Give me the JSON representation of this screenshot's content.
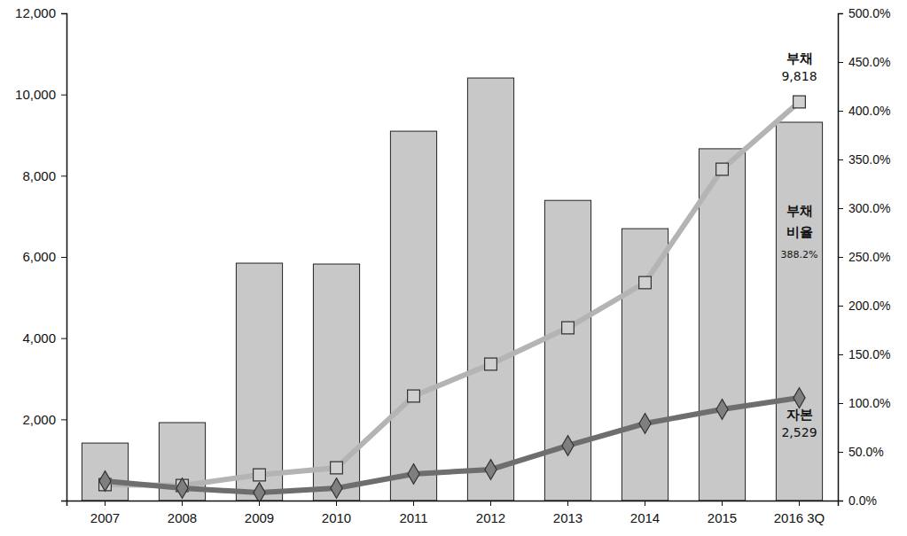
{
  "chart_data": {
    "type": "bar",
    "categories": [
      "2007",
      "2008",
      "2009",
      "2010",
      "2011",
      "2012",
      "2013",
      "2014",
      "2015",
      "2016 3Q"
    ],
    "ylim": [
      0,
      12000
    ],
    "yticks": [
      {
        "value": 2000,
        "label": "2,000"
      },
      {
        "value": 4000,
        "label": "4,000"
      },
      {
        "value": 6000,
        "label": "6,000"
      },
      {
        "value": 8000,
        "label": "8,000"
      },
      {
        "value": 10000,
        "label": "10,000"
      },
      {
        "value": 12000,
        "label": "12,000"
      }
    ],
    "y2lim": [
      0,
      500
    ],
    "y2ticks": [
      {
        "value": 0,
        "label": "0.0%"
      },
      {
        "value": 50,
        "label": "50.0%"
      },
      {
        "value": 100,
        "label": "100.0%"
      },
      {
        "value": 150,
        "label": "150.0%"
      },
      {
        "value": 200,
        "label": "200.0%"
      },
      {
        "value": 250,
        "label": "250.0%"
      },
      {
        "value": 300,
        "label": "300.0%"
      },
      {
        "value": 350,
        "label": "350.0%"
      },
      {
        "value": 400,
        "label": "400.0%"
      },
      {
        "value": 450,
        "label": "450.0%"
      },
      {
        "value": 500,
        "label": "500.0%"
      }
    ],
    "series": [
      {
        "name": "부채 비율",
        "type": "bar",
        "axis": "y2",
        "color": "#c8c8c8",
        "values": [
          59,
          80,
          243.6,
          242.7,
          379,
          433.6,
          308,
          279,
          361,
          388.2
        ],
        "value_labels": [
          null,
          null,
          null,
          null,
          null,
          null,
          null,
          null,
          null,
          "388.2%"
        ]
      },
      {
        "name": "부채",
        "type": "line",
        "color": "#b4b4b4",
        "marker": "square",
        "values": [
          393,
          371,
          633,
          807,
          2575,
          3360,
          4255,
          5368,
          8160,
          9818
        ],
        "value_labels": [
          null,
          null,
          null,
          null,
          null,
          null,
          null,
          null,
          null,
          "9,818"
        ]
      },
      {
        "name": "자본",
        "type": "line",
        "color": "#6e6e6e",
        "marker": "diamond",
        "values": [
          480,
          305,
          196,
          305,
          655,
          764,
          1353,
          1898,
          2247,
          2529
        ],
        "value_labels": [
          null,
          null,
          null,
          null,
          null,
          null,
          null,
          null,
          null,
          "2,529"
        ]
      }
    ]
  }
}
